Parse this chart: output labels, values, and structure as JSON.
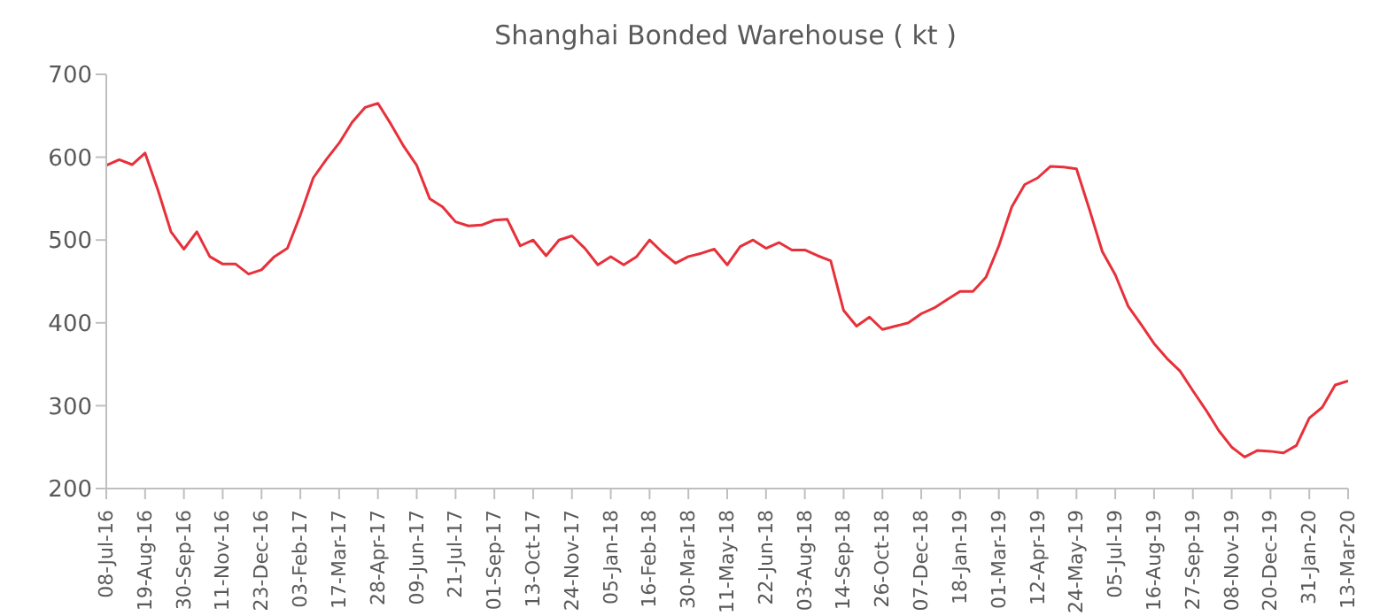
{
  "chart_data": {
    "type": "line",
    "title": "Shanghai Bonded Warehouse ( kt )",
    "x": [
      "2016-07-08",
      "2016-07-22",
      "2016-08-05",
      "2016-08-19",
      "2016-09-02",
      "2016-09-16",
      "2016-09-30",
      "2016-10-14",
      "2016-10-28",
      "2016-11-11",
      "2016-11-25",
      "2016-12-09",
      "2016-12-23",
      "2017-01-06",
      "2017-01-20",
      "2017-02-03",
      "2017-02-17",
      "2017-03-03",
      "2017-03-17",
      "2017-03-31",
      "2017-04-14",
      "2017-04-28",
      "2017-05-12",
      "2017-05-26",
      "2017-06-09",
      "2017-06-23",
      "2017-07-07",
      "2017-07-21",
      "2017-08-04",
      "2017-08-18",
      "2017-09-01",
      "2017-09-15",
      "2017-09-29",
      "2017-10-13",
      "2017-10-27",
      "2017-11-10",
      "2017-11-24",
      "2017-12-08",
      "2017-12-22",
      "2018-01-05",
      "2018-01-19",
      "2018-02-02",
      "2018-02-16",
      "2018-03-02",
      "2018-03-16",
      "2018-03-30",
      "2018-04-13",
      "2018-04-27",
      "2018-05-11",
      "2018-05-25",
      "2018-06-08",
      "2018-06-22",
      "2018-07-06",
      "2018-07-20",
      "2018-08-03",
      "2018-08-17",
      "2018-08-31",
      "2018-09-14",
      "2018-09-28",
      "2018-10-12",
      "2018-10-26",
      "2018-11-09",
      "2018-11-23",
      "2018-12-07",
      "2018-12-21",
      "2019-01-04",
      "2019-01-18",
      "2019-02-01",
      "2019-02-15",
      "2019-03-01",
      "2019-03-15",
      "2019-03-29",
      "2019-04-12",
      "2019-04-26",
      "2019-05-10",
      "2019-05-24",
      "2019-06-07",
      "2019-06-21",
      "2019-07-05",
      "2019-07-19",
      "2019-08-02",
      "2019-08-16",
      "2019-08-30",
      "2019-09-13",
      "2019-09-27",
      "2019-10-11",
      "2019-10-25",
      "2019-11-08",
      "2019-11-22",
      "2019-12-06",
      "2019-12-20",
      "2020-01-03",
      "2020-01-17",
      "2020-01-31",
      "2020-02-14",
      "2020-02-28",
      "2020-03-13"
    ],
    "series": [
      {
        "color": "#e8303a",
        "values": [
          590,
          597,
          591,
          605,
          560,
          510,
          489,
          510,
          480,
          471,
          471,
          459,
          464,
          480,
          490,
          530,
          575,
          597,
          617,
          642,
          660,
          665,
          640,
          613,
          590,
          550,
          540,
          522,
          517,
          518,
          524,
          525,
          493,
          500,
          481,
          500,
          505,
          490,
          470,
          480,
          470,
          480,
          500,
          485,
          472,
          480,
          484,
          489,
          470,
          492,
          500,
          490,
          497,
          488,
          488,
          481,
          475,
          415,
          396,
          407,
          392,
          396,
          400,
          411,
          418,
          428,
          438,
          438,
          455,
          493,
          540,
          567,
          575,
          589,
          588,
          586,
          537,
          486,
          458,
          420,
          398,
          375,
          357,
          342,
          318,
          295,
          270,
          250,
          238,
          246,
          245,
          243,
          252,
          285,
          298,
          325,
          330
        ]
      }
    ],
    "xlim": [
      "2016-07-08",
      "2020-03-13"
    ],
    "xticks": [
      {
        "value": "2016-07-08",
        "label": "08-Jul-16"
      },
      {
        "value": "2016-08-19",
        "label": "19-Aug-16"
      },
      {
        "value": "2016-09-30",
        "label": "30-Sep-16"
      },
      {
        "value": "2016-11-11",
        "label": "11-Nov-16"
      },
      {
        "value": "2016-12-23",
        "label": "23-Dec-16"
      },
      {
        "value": "2017-02-03",
        "label": "03-Feb-17"
      },
      {
        "value": "2017-03-17",
        "label": "17-Mar-17"
      },
      {
        "value": "2017-04-28",
        "label": "28-Apr-17"
      },
      {
        "value": "2017-06-09",
        "label": "09-Jun-17"
      },
      {
        "value": "2017-07-21",
        "label": "21-Jul-17"
      },
      {
        "value": "2017-09-01",
        "label": "01-Sep-17"
      },
      {
        "value": "2017-10-13",
        "label": "13-Oct-17"
      },
      {
        "value": "2017-11-24",
        "label": "24-Nov-17"
      },
      {
        "value": "2018-01-05",
        "label": "05-Jan-18"
      },
      {
        "value": "2018-02-16",
        "label": "16-Feb-18"
      },
      {
        "value": "2018-03-30",
        "label": "30-Mar-18"
      },
      {
        "value": "2018-05-11",
        "label": "11-May-18"
      },
      {
        "value": "2018-06-22",
        "label": "22-Jun-18"
      },
      {
        "value": "2018-08-03",
        "label": "03-Aug-18"
      },
      {
        "value": "2018-09-14",
        "label": "14-Sep-18"
      },
      {
        "value": "2018-10-26",
        "label": "26-Oct-18"
      },
      {
        "value": "2018-12-07",
        "label": "07-Dec-18"
      },
      {
        "value": "2019-01-18",
        "label": "18-Jan-19"
      },
      {
        "value": "2019-03-01",
        "label": "01-Mar-19"
      },
      {
        "value": "2019-04-12",
        "label": "12-Apr-19"
      },
      {
        "value": "2019-05-24",
        "label": "24-May-19"
      },
      {
        "value": "2019-07-05",
        "label": "05-Jul-19"
      },
      {
        "value": "2019-08-16",
        "label": "16-Aug-19"
      },
      {
        "value": "2019-09-27",
        "label": "27-Sep-19"
      },
      {
        "value": "2019-11-08",
        "label": "08-Nov-19"
      },
      {
        "value": "2019-12-20",
        "label": "20-Dec-19"
      },
      {
        "value": "2020-01-31",
        "label": "31-Jan-20"
      },
      {
        "value": "2020-03-13",
        "label": "13-Mar-20"
      }
    ],
    "ylim": [
      200,
      700
    ],
    "yticks": [
      200,
      300,
      400,
      500,
      600,
      700
    ]
  }
}
